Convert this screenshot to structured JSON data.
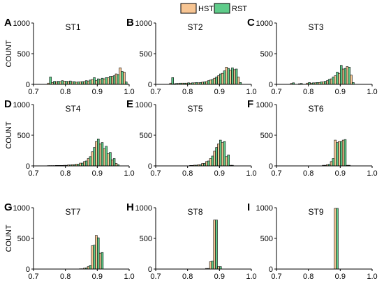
{
  "legend": [
    {
      "name": "HST",
      "color": "#f7c593"
    },
    {
      "name": "RST",
      "color": "#5fcc8a"
    }
  ],
  "ylabel": "COUNT",
  "x_ticks": [
    "0.7",
    "0.8",
    "0.9",
    "1.0"
  ],
  "y_ticks": [
    "0",
    "500",
    "1000"
  ],
  "chart_data": [
    {
      "type": "bar",
      "letter": "A",
      "title": "ST1",
      "xlim": [
        0.7,
        1.0
      ],
      "ylim": [
        0,
        1000
      ],
      "x": [
        0.75,
        0.7625,
        0.775,
        0.7875,
        0.8,
        0.8125,
        0.825,
        0.8375,
        0.85,
        0.8625,
        0.875,
        0.8875,
        0.9,
        0.9125,
        0.925,
        0.9375,
        0.95,
        0.9625,
        0.975,
        0.9875
      ],
      "series": [
        {
          "name": "HST",
          "values": [
            20,
            30,
            40,
            45,
            50,
            45,
            40,
            35,
            40,
            45,
            55,
            80,
            60,
            75,
            90,
            110,
            130,
            170,
            270,
            200
          ]
        },
        {
          "name": "RST",
          "values": [
            120,
            50,
            50,
            60,
            50,
            55,
            45,
            40,
            45,
            60,
            70,
            110,
            90,
            100,
            110,
            130,
            140,
            160,
            210,
            40
          ]
        }
      ]
    },
    {
      "type": "bar",
      "letter": "B",
      "title": "ST2",
      "xlim": [
        0.7,
        1.0
      ],
      "ylim": [
        0,
        1000
      ],
      "x": [
        0.75,
        0.7625,
        0.775,
        0.7875,
        0.8,
        0.8125,
        0.825,
        0.8375,
        0.85,
        0.8625,
        0.875,
        0.8875,
        0.9,
        0.9125,
        0.925,
        0.9375,
        0.95,
        0.9625
      ],
      "series": [
        {
          "name": "HST",
          "values": [
            20,
            10,
            15,
            20,
            20,
            20,
            25,
            25,
            35,
            45,
            70,
            100,
            140,
            180,
            280,
            230,
            240,
            120
          ]
        },
        {
          "name": "RST",
          "values": [
            110,
            15,
            20,
            20,
            25,
            25,
            30,
            30,
            40,
            60,
            80,
            120,
            170,
            220,
            260,
            270,
            250,
            30
          ]
        }
      ]
    },
    {
      "type": "bar",
      "letter": "C",
      "title": "ST3",
      "xlim": [
        0.7,
        1.0
      ],
      "ylim": [
        0,
        1000
      ],
      "x": [
        0.75,
        0.775,
        0.8,
        0.8125,
        0.825,
        0.8375,
        0.85,
        0.8625,
        0.875,
        0.8875,
        0.9,
        0.9125,
        0.925,
        0.9375
      ],
      "series": [
        {
          "name": "HST",
          "values": [
            15,
            10,
            20,
            20,
            25,
            30,
            40,
            60,
            90,
            140,
            180,
            250,
            290,
            150
          ]
        },
        {
          "name": "RST",
          "values": [
            25,
            15,
            30,
            25,
            30,
            40,
            50,
            80,
            120,
            200,
            310,
            260,
            280,
            30
          ]
        }
      ]
    },
    {
      "type": "bar",
      "letter": "D",
      "title": "ST4",
      "xlim": [
        0.7,
        1.0
      ],
      "ylim": [
        0,
        1000
      ],
      "x": [
        0.75,
        0.7625,
        0.775,
        0.7875,
        0.8,
        0.8125,
        0.825,
        0.8375,
        0.85,
        0.8625,
        0.875,
        0.8875,
        0.9,
        0.9125,
        0.925,
        0.9375,
        0.95,
        0.9625
      ],
      "series": [
        {
          "name": "HST",
          "values": [
            5,
            5,
            8,
            8,
            10,
            15,
            20,
            30,
            45,
            70,
            120,
            230,
            400,
            360,
            280,
            200,
            100,
            40
          ]
        },
        {
          "name": "RST",
          "values": [
            5,
            5,
            8,
            8,
            10,
            15,
            20,
            30,
            45,
            80,
            150,
            300,
            440,
            380,
            320,
            220,
            120,
            20
          ]
        }
      ]
    },
    {
      "type": "bar",
      "letter": "E",
      "title": "ST5",
      "xlim": [
        0.7,
        1.0
      ],
      "ylim": [
        0,
        1000
      ],
      "x": [
        0.8125,
        0.825,
        0.8375,
        0.85,
        0.8625,
        0.875,
        0.8875,
        0.9,
        0.9125,
        0.925,
        0.9375
      ],
      "series": [
        {
          "name": "HST",
          "values": [
            8,
            12,
            20,
            40,
            70,
            120,
            240,
            360,
            380,
            150,
            10
          ]
        },
        {
          "name": "RST",
          "values": [
            8,
            12,
            20,
            40,
            80,
            160,
            300,
            420,
            400,
            180,
            10
          ]
        }
      ]
    },
    {
      "type": "bar",
      "letter": "F",
      "title": "ST6",
      "xlim": [
        0.7,
        1.0
      ],
      "ylim": [
        0,
        1000
      ],
      "x": [
        0.85,
        0.8625,
        0.875,
        0.8875,
        0.9,
        0.9125,
        0.925
      ],
      "series": [
        {
          "name": "HST",
          "values": [
            10,
            20,
            70,
            420,
            400,
            420,
            10
          ]
        },
        {
          "name": "RST",
          "values": [
            10,
            25,
            120,
            380,
            400,
            430,
            10
          ]
        }
      ]
    },
    {
      "type": "bar",
      "letter": "G",
      "title": "ST7",
      "xlim": [
        0.7,
        1.0
      ],
      "ylim": [
        0,
        1000
      ],
      "x": [
        0.85,
        0.8625,
        0.875,
        0.8875,
        0.9,
        0.9125
      ],
      "series": [
        {
          "name": "HST",
          "values": [
            5,
            15,
            40,
            380,
            550,
            260
          ]
        },
        {
          "name": "RST",
          "values": [
            5,
            20,
            60,
            390,
            510,
            270
          ]
        }
      ]
    },
    {
      "type": "bar",
      "letter": "H",
      "title": "ST8",
      "xlim": [
        0.7,
        1.0
      ],
      "ylim": [
        0,
        1000
      ],
      "x": [
        0.8625,
        0.875,
        0.8875,
        0.9
      ],
      "series": [
        {
          "name": "HST",
          "values": [
            10,
            120,
            800,
            40
          ]
        },
        {
          "name": "RST",
          "values": [
            10,
            130,
            800,
            40
          ]
        }
      ]
    },
    {
      "type": "bar",
      "letter": "I",
      "title": "ST9",
      "xlim": [
        0.7,
        1.0
      ],
      "ylim": [
        0,
        1000
      ],
      "x": [
        0.8875
      ],
      "series": [
        {
          "name": "HST",
          "values": [
            990
          ]
        },
        {
          "name": "RST",
          "values": [
            990
          ]
        }
      ]
    }
  ]
}
